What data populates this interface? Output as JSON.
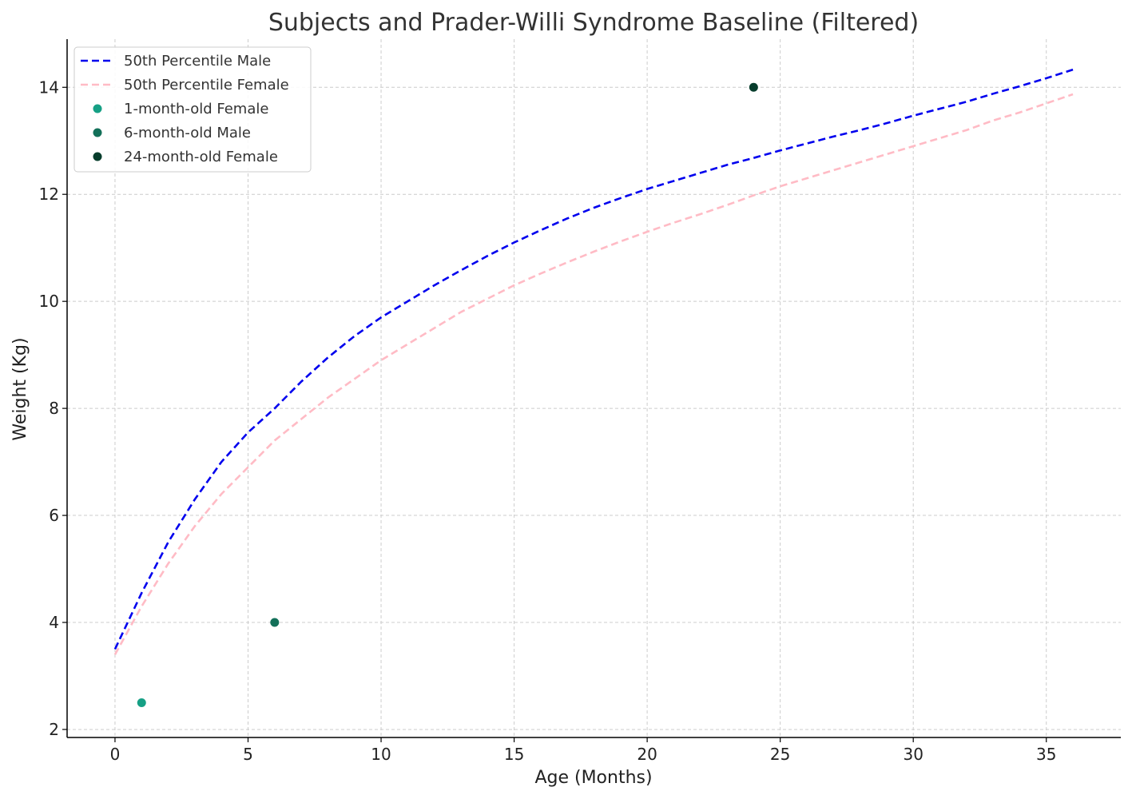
{
  "chart_data": {
    "type": "line",
    "title": "Subjects and Prader-Willi Syndrome Baseline (Filtered)",
    "xlabel": "Age (Months)",
    "ylabel": "Weight (Kg)",
    "xlim": [
      -1.8,
      37.8
    ],
    "ylim": [
      1.85,
      14.9
    ],
    "xticks": [
      0,
      5,
      10,
      15,
      20,
      25,
      30,
      35
    ],
    "yticks": [
      2,
      4,
      6,
      8,
      10,
      12,
      14
    ],
    "grid": true,
    "legend_position": "top-left",
    "series": [
      {
        "name": "50th Percentile Male",
        "kind": "line",
        "style": "dashed",
        "color": "#0000ee",
        "x": [
          0,
          1,
          2,
          3,
          4,
          5,
          6,
          7,
          8,
          9,
          10,
          11,
          12,
          13,
          14,
          15,
          16,
          17,
          18,
          19,
          20,
          21,
          22,
          23,
          24,
          25,
          26,
          27,
          28,
          29,
          30,
          31,
          32,
          33,
          34,
          35,
          36
        ],
        "y": [
          3.5,
          4.55,
          5.5,
          6.3,
          7.0,
          7.55,
          8.0,
          8.5,
          8.95,
          9.35,
          9.7,
          10.0,
          10.3,
          10.58,
          10.85,
          11.1,
          11.33,
          11.55,
          11.75,
          11.93,
          12.1,
          12.25,
          12.4,
          12.55,
          12.68,
          12.82,
          12.95,
          13.08,
          13.2,
          13.33,
          13.47,
          13.6,
          13.73,
          13.88,
          14.02,
          14.17,
          14.33
        ]
      },
      {
        "name": "50th Percentile Female",
        "kind": "line",
        "style": "dashed",
        "color": "#ffbbc5",
        "x": [
          0,
          1,
          2,
          3,
          4,
          5,
          6,
          7,
          8,
          9,
          10,
          11,
          12,
          13,
          14,
          15,
          16,
          17,
          18,
          19,
          20,
          21,
          22,
          23,
          24,
          25,
          26,
          27,
          28,
          29,
          30,
          31,
          32,
          33,
          34,
          35,
          36
        ],
        "y": [
          3.4,
          4.3,
          5.1,
          5.8,
          6.4,
          6.9,
          7.4,
          7.8,
          8.2,
          8.55,
          8.9,
          9.2,
          9.5,
          9.8,
          10.05,
          10.3,
          10.52,
          10.73,
          10.93,
          11.12,
          11.3,
          11.47,
          11.63,
          11.8,
          11.98,
          12.15,
          12.3,
          12.45,
          12.6,
          12.75,
          12.9,
          13.05,
          13.2,
          13.38,
          13.53,
          13.7,
          13.87
        ]
      },
      {
        "name": "1-month-old Female",
        "kind": "point",
        "color": "#16a085",
        "x": [
          1
        ],
        "y": [
          2.5
        ]
      },
      {
        "name": "6-month-old Male",
        "kind": "point",
        "color": "#137059",
        "x": [
          6
        ],
        "y": [
          4
        ]
      },
      {
        "name": "24-month-old Female",
        "kind": "point",
        "color": "#073d2c",
        "x": [
          24
        ],
        "y": [
          14
        ]
      }
    ]
  }
}
